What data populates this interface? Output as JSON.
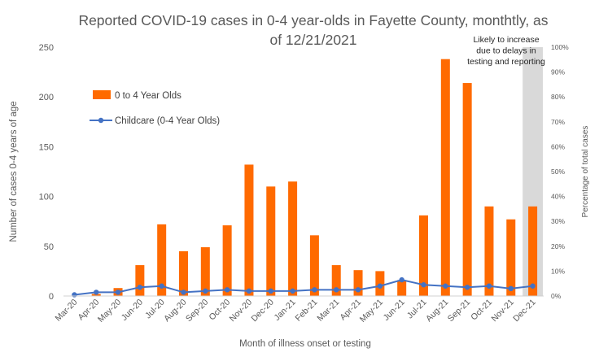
{
  "chart_data": {
    "type": "bar",
    "title_line1": "Reported COVID-19 cases in 0-4 year-olds in Fayette County, monthtly, as",
    "title_line2": "of 12/21/2021",
    "xlabel": "Month of illness onset or testing",
    "ylabel": "Number of cases 0-4 years of age",
    "y2label": "Percentage of total cases",
    "ylim": [
      0,
      250
    ],
    "y2lim": [
      0,
      1.0
    ],
    "yticks": [
      "0",
      "50",
      "100",
      "150",
      "200",
      "250"
    ],
    "y2ticks": [
      "0%",
      "10%",
      "20%",
      "30%",
      "40%",
      "50%",
      "60%",
      "70%",
      "80%",
      "90%",
      "100%"
    ],
    "categories": [
      "Mar-20",
      "Apr-20",
      "May-20",
      "Jun-20",
      "Jul-20",
      "Aug-20",
      "Sep-20",
      "Oct-20",
      "Nov-20",
      "Dec-20",
      "Jan-21",
      "Feb-21",
      "Mar-21",
      "Apr-21",
      "May-21",
      "Jun-21",
      "Jul-21",
      "Aug-21",
      "Sep-21",
      "Oct-21",
      "Nov-21",
      "Dec-21"
    ],
    "series": [
      {
        "name": "0 to 4 Year Olds",
        "type": "bar",
        "axis": "left",
        "color": "#ff6a00",
        "values": [
          0,
          2,
          8,
          31,
          72,
          45,
          49,
          71,
          132,
          110,
          115,
          61,
          31,
          26,
          25,
          16,
          81,
          238,
          214,
          90,
          77,
          90
        ]
      },
      {
        "name": "Childcare (0-4 Year Olds)",
        "type": "line",
        "axis": "right",
        "color": "#4472c4",
        "values": [
          0.005,
          0.015,
          0.015,
          0.035,
          0.04,
          0.015,
          0.02,
          0.025,
          0.02,
          0.02,
          0.02,
          0.025,
          0.025,
          0.025,
          0.04,
          0.065,
          0.045,
          0.04,
          0.035,
          0.04,
          0.03,
          0.04
        ]
      }
    ],
    "shaded_region": {
      "category": "Dec-21",
      "color": "#d9d9d9",
      "annotation": [
        "Likely to increase",
        "due to delays in",
        "testing and reporting"
      ]
    },
    "legend": "top-left inside plot",
    "grid": false
  }
}
